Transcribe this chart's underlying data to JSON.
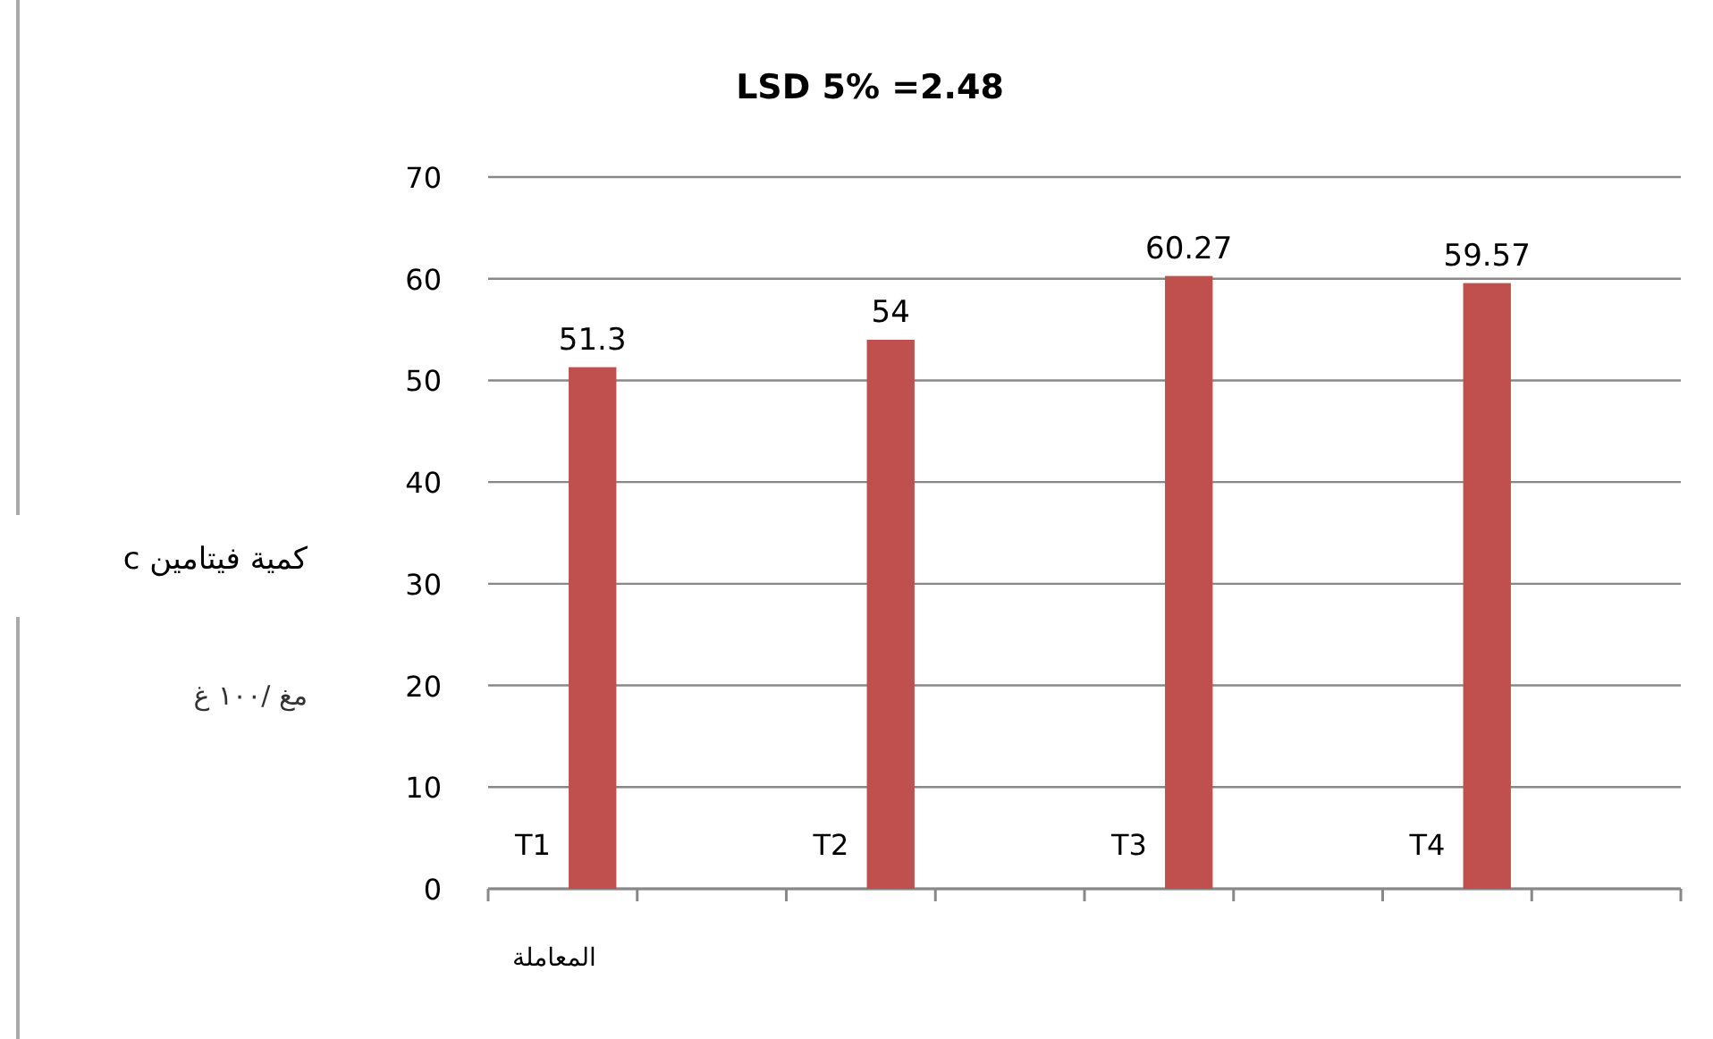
{
  "chart_data": {
    "type": "bar",
    "title": "LSD 5% =2.48",
    "xlabel": "المعاملة",
    "ylabel": "كمية فيتامين c\nمغ /١٠٠ غ",
    "categories": [
      "T1",
      "T2",
      "T3",
      "T4"
    ],
    "values": [
      51.3,
      54,
      60.27,
      59.57
    ],
    "color": "#c0504d",
    "data_labels": true,
    "ylim": [
      0,
      70
    ],
    "yticks": [
      0,
      10,
      20,
      30,
      40,
      50,
      60,
      70
    ],
    "grid": "y"
  }
}
